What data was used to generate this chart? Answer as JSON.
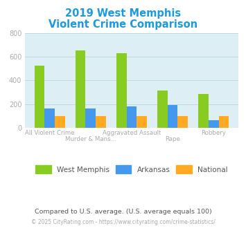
{
  "title_line1": "2019 West Memphis",
  "title_line2": "Violent Crime Comparison",
  "title_color": "#1a9adf",
  "categories_bottom": [
    "All Violent Crime",
    "",
    "Aggravated Assault",
    "",
    "Robbery"
  ],
  "categories_top": [
    "",
    "Murder & Mans...",
    "",
    "Rape",
    ""
  ],
  "west_memphis": [
    525,
    655,
    630,
    315,
    285
  ],
  "arkansas": [
    160,
    163,
    180,
    190,
    63
  ],
  "national": [
    100,
    100,
    100,
    100,
    100
  ],
  "colors": {
    "west_memphis": "#88cc22",
    "arkansas": "#4499ee",
    "national": "#ffaa22"
  },
  "ylim": [
    0,
    800
  ],
  "yticks": [
    0,
    200,
    400,
    600,
    800
  ],
  "plot_bg": "#ddeef5",
  "grid_color": "#c0d8e0",
  "tick_label_color": "#aaaaaa",
  "legend_labels": [
    "West Memphis",
    "Arkansas",
    "National"
  ],
  "legend_text_color": "#555555",
  "footnote1": "Compared to U.S. average. (U.S. average equals 100)",
  "footnote1_color": "#555555",
  "footnote2_text": "© 2025 CityRating.com - ",
  "footnote2_link": "https://www.cityrating.com/crime-statistics/",
  "footnote2_color": "#aaaaaa",
  "footnote2_link_color": "#4499ee"
}
